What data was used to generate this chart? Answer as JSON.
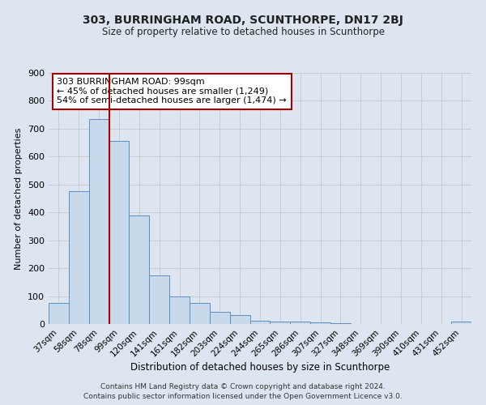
{
  "title": "303, BURRINGHAM ROAD, SCUNTHORPE, DN17 2BJ",
  "subtitle": "Size of property relative to detached houses in Scunthorpe",
  "xlabel": "Distribution of detached houses by size in Scunthorpe",
  "ylabel": "Number of detached properties",
  "bar_labels": [
    "37sqm",
    "58sqm",
    "78sqm",
    "99sqm",
    "120sqm",
    "141sqm",
    "161sqm",
    "182sqm",
    "203sqm",
    "224sqm",
    "244sqm",
    "265sqm",
    "286sqm",
    "307sqm",
    "327sqm",
    "348sqm",
    "369sqm",
    "390sqm",
    "410sqm",
    "431sqm",
    "452sqm"
  ],
  "bar_values": [
    75,
    475,
    735,
    655,
    390,
    175,
    100,
    75,
    45,
    33,
    12,
    10,
    8,
    5,
    4,
    0,
    0,
    0,
    0,
    0,
    8
  ],
  "bar_color": "#c9d9ec",
  "bar_edge_color": "#5a8fc2",
  "vline_color": "#aa0000",
  "annotation_line1": "303 BURRINGHAM ROAD: 99sqm",
  "annotation_line2": "← 45% of detached houses are smaller (1,249)",
  "annotation_line3": "54% of semi-detached houses are larger (1,474) →",
  "annotation_box_edge_color": "#aa0000",
  "ylim": [
    0,
    900
  ],
  "yticks": [
    0,
    100,
    200,
    300,
    400,
    500,
    600,
    700,
    800,
    900
  ],
  "grid_color": "#cccccc",
  "plot_bg_color": "#dde6f0",
  "fig_bg_color": "#dde6f0",
  "footer_line1": "Contains HM Land Registry data © Crown copyright and database right 2024.",
  "footer_line2": "Contains public sector information licensed under the Open Government Licence v3.0."
}
